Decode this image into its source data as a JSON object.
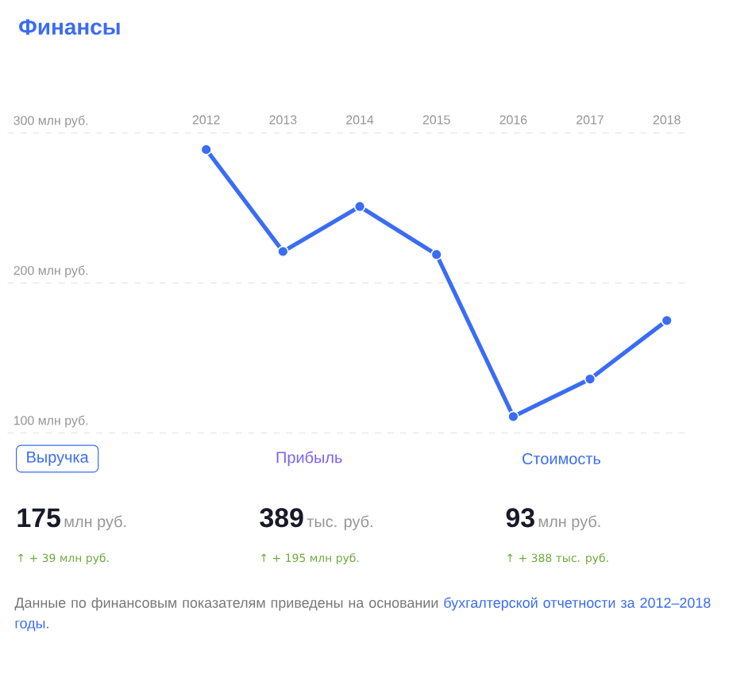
{
  "chart_data": {
    "type": "line",
    "title": "Финансы",
    "categories": [
      "2012",
      "2013",
      "2014",
      "2015",
      "2016",
      "2017",
      "2018"
    ],
    "series": [
      {
        "color": "#3a6cf4",
        "values": [
          289,
          221,
          251,
          219,
          111,
          136,
          175
        ]
      }
    ],
    "ylim": [
      100,
      300
    ],
    "yticks": [
      {
        "value": 100,
        "label": "100 млн руб."
      },
      {
        "value": 200,
        "label": "200 млн руб."
      },
      {
        "value": 300,
        "label": "300 млн руб."
      }
    ],
    "grid": "y",
    "marker": "circle",
    "line_style": "solid",
    "annotations": [
      "Выручка",
      "Прибыль",
      "Стоимость",
      "175",
      "389",
      "93",
      "млн руб.",
      "тыс. руб.",
      "млн руб.",
      "↑ + 39 млн руб.",
      "↑ + 195 млн руб.",
      "↑ + 388 тыс. руб.",
      "Данные по финансовым показателям приведены на основании",
      "бухгалтерской отчетности за 2012–2018 годы."
    ]
  }
}
